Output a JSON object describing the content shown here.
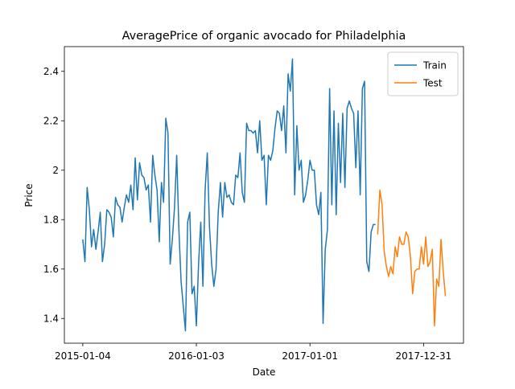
{
  "chart_data": {
    "type": "line",
    "title": "AveragePrice of organic avocado for Philadelphia",
    "x_label": "Date",
    "y_label": "Price",
    "x": [
      "2015-01-04",
      "2015-01-11",
      "2015-01-18",
      "2015-01-25",
      "2015-02-01",
      "2015-02-08",
      "2015-02-15",
      "2015-02-22",
      "2015-03-01",
      "2015-03-08",
      "2015-03-15",
      "2015-03-22",
      "2015-03-29",
      "2015-04-05",
      "2015-04-12",
      "2015-04-19",
      "2015-04-26",
      "2015-05-03",
      "2015-05-10",
      "2015-05-17",
      "2015-05-24",
      "2015-05-31",
      "2015-06-07",
      "2015-06-14",
      "2015-06-21",
      "2015-06-28",
      "2015-07-05",
      "2015-07-12",
      "2015-07-19",
      "2015-07-26",
      "2015-08-02",
      "2015-08-09",
      "2015-08-16",
      "2015-08-23",
      "2015-08-30",
      "2015-09-06",
      "2015-09-13",
      "2015-09-20",
      "2015-09-27",
      "2015-10-04",
      "2015-10-11",
      "2015-10-18",
      "2015-10-25",
      "2015-11-01",
      "2015-11-08",
      "2015-11-15",
      "2015-11-22",
      "2015-11-29",
      "2015-12-06",
      "2015-12-13",
      "2015-12-20",
      "2015-12-27",
      "2016-01-03",
      "2016-01-10",
      "2016-01-17",
      "2016-01-24",
      "2016-01-31",
      "2016-02-07",
      "2016-02-14",
      "2016-02-21",
      "2016-02-28",
      "2016-03-06",
      "2016-03-13",
      "2016-03-20",
      "2016-03-27",
      "2016-04-03",
      "2016-04-10",
      "2016-04-17",
      "2016-04-24",
      "2016-05-01",
      "2016-05-08",
      "2016-05-15",
      "2016-05-22",
      "2016-05-29",
      "2016-06-05",
      "2016-06-12",
      "2016-06-19",
      "2016-06-26",
      "2016-07-03",
      "2016-07-10",
      "2016-07-17",
      "2016-07-24",
      "2016-07-31",
      "2016-08-07",
      "2016-08-14",
      "2016-08-21",
      "2016-08-28",
      "2016-09-04",
      "2016-09-11",
      "2016-09-18",
      "2016-09-25",
      "2016-10-02",
      "2016-10-09",
      "2016-10-16",
      "2016-10-23",
      "2016-10-30",
      "2016-11-06",
      "2016-11-13",
      "2016-11-20",
      "2016-11-27",
      "2016-12-04",
      "2016-12-11",
      "2016-12-18",
      "2016-12-25",
      "2017-01-01",
      "2017-01-08",
      "2017-01-15",
      "2017-01-22",
      "2017-01-29",
      "2017-02-05",
      "2017-02-12",
      "2017-02-19",
      "2017-02-26",
      "2017-03-05",
      "2017-03-12",
      "2017-03-19",
      "2017-03-26",
      "2017-04-02",
      "2017-04-09",
      "2017-04-16",
      "2017-04-23",
      "2017-04-30",
      "2017-05-07",
      "2017-05-14",
      "2017-05-21",
      "2017-05-28",
      "2017-06-04",
      "2017-06-11",
      "2017-06-18",
      "2017-06-25",
      "2017-07-02",
      "2017-07-09",
      "2017-07-16",
      "2017-07-23",
      "2017-07-30",
      "2017-08-06",
      "2017-08-13",
      "2017-08-20",
      "2017-08-27",
      "2017-09-03",
      "2017-09-10",
      "2017-09-17",
      "2017-09-24",
      "2017-10-01",
      "2017-10-08",
      "2017-10-15",
      "2017-10-22",
      "2017-10-29",
      "2017-11-05",
      "2017-11-12",
      "2017-11-19",
      "2017-11-26",
      "2017-12-03",
      "2017-12-10",
      "2017-12-17",
      "2017-12-24",
      "2017-12-31",
      "2018-01-07",
      "2018-01-14",
      "2018-01-21",
      "2018-01-28",
      "2018-02-04",
      "2018-02-11",
      "2018-02-18",
      "2018-02-25",
      "2018-03-04",
      "2018-03-11"
    ],
    "series": [
      {
        "name": "Train",
        "color": "#1f77b4",
        "values": [
          1.72,
          1.63,
          1.93,
          1.84,
          1.69,
          1.76,
          1.68,
          1.75,
          1.83,
          1.63,
          1.7,
          1.84,
          1.83,
          1.81,
          1.73,
          1.89,
          1.86,
          1.85,
          1.79,
          1.85,
          1.9,
          1.87,
          1.94,
          1.84,
          2.05,
          1.88,
          2.03,
          1.98,
          1.97,
          1.92,
          1.94,
          1.79,
          2.06,
          1.98,
          1.92,
          1.71,
          1.95,
          1.87,
          2.21,
          2.15,
          1.62,
          1.72,
          1.85,
          2.06,
          1.76,
          1.55,
          1.45,
          1.35,
          1.79,
          1.83,
          1.5,
          1.53,
          1.37,
          1.62,
          1.79,
          1.53,
          1.92,
          2.07,
          1.77,
          1.62,
          1.53,
          1.6,
          1.83,
          1.95,
          1.81,
          1.95,
          1.89,
          1.9,
          1.87,
          1.86,
          1.98,
          1.97,
          2.07,
          1.91,
          1.87,
          2.19,
          2.16,
          2.16,
          2.15,
          2.16,
          2.07,
          2.2,
          2.04,
          2.06,
          1.86,
          2.06,
          2.04,
          2.08,
          2.17,
          2.24,
          2.23,
          2.16,
          2.26,
          2.07,
          2.39,
          2.32,
          2.45,
          1.9,
          2.18,
          2.0,
          2.04,
          1.87,
          1.9,
          1.96,
          2.04,
          2.0,
          2.0,
          1.86,
          1.82,
          1.91,
          1.38,
          1.68,
          1.76,
          2.33,
          1.86,
          2.24,
          1.82,
          2.19,
          1.95,
          2.23,
          1.93,
          2.25,
          2.28,
          2.25,
          2.23,
          2.01,
          2.24,
          1.9,
          2.33,
          2.36,
          1.63,
          1.59,
          1.75,
          1.78,
          1.78,
          null,
          null,
          null,
          null,
          null,
          null,
          null,
          null,
          null,
          null,
          null,
          null,
          null,
          null,
          null,
          null,
          null,
          null,
          null,
          null,
          null,
          null,
          null,
          null,
          null,
          null,
          null,
          null,
          null,
          null,
          null,
          null
        ]
      },
      {
        "name": "Test",
        "color": "#ff7f0e",
        "values": [
          null,
          null,
          null,
          null,
          null,
          null,
          null,
          null,
          null,
          null,
          null,
          null,
          null,
          null,
          null,
          null,
          null,
          null,
          null,
          null,
          null,
          null,
          null,
          null,
          null,
          null,
          null,
          null,
          null,
          null,
          null,
          null,
          null,
          null,
          null,
          null,
          null,
          null,
          null,
          null,
          null,
          null,
          null,
          null,
          null,
          null,
          null,
          null,
          null,
          null,
          null,
          null,
          null,
          null,
          null,
          null,
          null,
          null,
          null,
          null,
          null,
          null,
          null,
          null,
          null,
          null,
          null,
          null,
          null,
          null,
          null,
          null,
          null,
          null,
          null,
          null,
          null,
          null,
          null,
          null,
          null,
          null,
          null,
          null,
          null,
          null,
          null,
          null,
          null,
          null,
          null,
          null,
          null,
          null,
          null,
          null,
          null,
          null,
          null,
          null,
          null,
          null,
          null,
          null,
          null,
          null,
          null,
          null,
          null,
          null,
          null,
          null,
          null,
          null,
          null,
          null,
          null,
          null,
          null,
          null,
          null,
          null,
          null,
          null,
          null,
          null,
          null,
          null,
          null,
          null,
          null,
          null,
          null,
          null,
          null,
          1.74,
          1.92,
          1.86,
          1.67,
          1.61,
          1.57,
          1.61,
          1.58,
          1.69,
          1.65,
          1.73,
          1.7,
          1.7,
          1.75,
          1.73,
          1.65,
          1.5,
          1.59,
          1.6,
          1.6,
          1.69,
          1.62,
          1.73,
          1.61,
          1.63,
          1.68,
          1.37,
          1.56,
          1.53,
          1.72,
          1.59,
          1.49
        ]
      }
    ],
    "xlim": [
      "2014-11-06",
      "2018-05-08"
    ],
    "xticks": [
      "2015-01-04",
      "2016-01-03",
      "2017-01-01",
      "2017-12-31"
    ],
    "ylim": [
      1.3,
      2.5
    ],
    "yticks": [
      1.4,
      1.6,
      1.8,
      2.0,
      2.2,
      2.4
    ],
    "grid": false,
    "legend": "upper right"
  }
}
